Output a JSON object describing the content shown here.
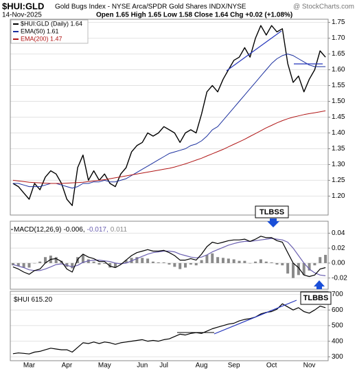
{
  "header": {
    "symbol": "$HUI:GLD",
    "subtitle": "Gold Bugs Index - NYSE Arca/SPDR Gold Shares INDX/NYSE",
    "source": "@ StockCharts.com",
    "date": "14-Nov-2025",
    "quote": "Open 1.65 High 1.65 Low 1.58 Close 1.64 Chg +0.02 (+1.08%)"
  },
  "chart_data": [
    {
      "type": "line",
      "ylim": [
        1.14,
        1.76
      ],
      "yticks": [
        {
          "value": 1.2,
          "label": "1.20"
        },
        1.25,
        {
          "value": 1.3,
          "label": "1.30"
        },
        1.35,
        {
          "value": 1.4,
          "label": "1.40"
        },
        1.45,
        {
          "value": 1.5,
          "label": "1.50"
        },
        1.55,
        {
          "value": 1.6,
          "label": "1.60"
        },
        1.65,
        {
          "value": 1.7,
          "label": "1.70"
        },
        1.75
      ],
      "grid": true,
      "annotations": [
        "TLBSS"
      ],
      "series": [
        {
          "name": "$HUI:GLD (Daily) 1.64",
          "color": "#000000",
          "width": 1.4,
          "values": [
            1.24,
            1.23,
            1.21,
            1.19,
            1.24,
            1.22,
            1.26,
            1.28,
            1.27,
            1.24,
            1.19,
            1.17,
            1.29,
            1.33,
            1.25,
            1.28,
            1.25,
            1.27,
            1.24,
            1.23,
            1.27,
            1.29,
            1.34,
            1.36,
            1.37,
            1.4,
            1.39,
            1.4,
            1.42,
            1.41,
            1.4,
            1.37,
            1.4,
            1.41,
            1.4,
            1.46,
            1.53,
            1.55,
            1.53,
            1.57,
            1.6,
            1.63,
            1.64,
            1.67,
            1.64,
            1.7,
            1.74,
            1.71,
            1.74,
            1.72,
            1.73,
            1.62,
            1.56,
            1.58,
            1.53,
            1.57,
            1.6,
            1.66,
            1.64
          ]
        },
        {
          "name": "EMA(50) 1.61",
          "color": "#1a2f9e",
          "width": 1,
          "values": [
            1.24,
            1.24,
            1.235,
            1.23,
            1.23,
            1.23,
            1.235,
            1.24,
            1.24,
            1.235,
            1.23,
            1.225,
            1.23,
            1.24,
            1.24,
            1.245,
            1.245,
            1.25,
            1.245,
            1.245,
            1.25,
            1.255,
            1.265,
            1.275,
            1.285,
            1.295,
            1.305,
            1.315,
            1.325,
            1.335,
            1.34,
            1.345,
            1.35,
            1.36,
            1.365,
            1.375,
            1.39,
            1.41,
            1.42,
            1.44,
            1.46,
            1.48,
            1.5,
            1.52,
            1.54,
            1.56,
            1.58,
            1.6,
            1.62,
            1.635,
            1.645,
            1.65,
            1.645,
            1.635,
            1.625,
            1.615,
            1.61,
            1.61,
            1.61
          ]
        },
        {
          "name": "EMA(200) 1.47",
          "color": "#b01515",
          "width": 1,
          "values": [
            1.25,
            1.248,
            1.246,
            1.244,
            1.243,
            1.242,
            1.241,
            1.24,
            1.24,
            1.24,
            1.241,
            1.242,
            1.243,
            1.244,
            1.246,
            1.248,
            1.25,
            1.252,
            1.255,
            1.258,
            1.261,
            1.264,
            1.267,
            1.27,
            1.273,
            1.276,
            1.279,
            1.282,
            1.285,
            1.288,
            1.292,
            1.297,
            1.302,
            1.308,
            1.314,
            1.32,
            1.327,
            1.334,
            1.341,
            1.348,
            1.356,
            1.364,
            1.372,
            1.38,
            1.389,
            1.398,
            1.407,
            1.416,
            1.424,
            1.432,
            1.439,
            1.445,
            1.45,
            1.454,
            1.458,
            1.461,
            1.464,
            1.467,
            1.47
          ]
        }
      ]
    },
    {
      "type": "line",
      "legend": "MACD(12,26,9)",
      "legend_values": [
        "-0.006,",
        "-0.017,",
        "0.011"
      ],
      "ylim": [
        -0.035,
        0.056
      ],
      "yticks": [
        -0.02,
        {
          "value": 0,
          "label": "0.00"
        },
        0.02,
        0.04
      ],
      "grid": true,
      "series": [
        {
          "name": "Histogram",
          "style": "bar",
          "color": "#8a8a8a",
          "values": [
            -0.003,
            -0.004,
            -0.006,
            -0.006,
            0,
            0.002,
            0.008,
            0.01,
            0.008,
            0.003,
            -0.005,
            -0.007,
            0.008,
            0.011,
            0.005,
            0.002,
            -0.002,
            -0.001,
            -0.006,
            -0.006,
            -0.001,
            0.004,
            0.007,
            0.008,
            0.007,
            0.006,
            0.002,
            0.001,
            0.001,
            -0.002,
            -0.005,
            -0.008,
            -0.006,
            -0.002,
            -0.003,
            0.004,
            0.011,
            0.013,
            0.008,
            0.007,
            0.006,
            0.005,
            0.003,
            0.003,
            0,
            0.002,
            0.005,
            0.002,
            0.001,
            -0.002,
            -0.003,
            -0.014,
            -0.02,
            -0.016,
            -0.016,
            -0.01,
            -0.003,
            0.008,
            0.011
          ]
        },
        {
          "name": "Signal",
          "style": "line",
          "color": "#6a5fb0",
          "values": [
            -0.002,
            -0.004,
            -0.006,
            -0.009,
            -0.01,
            -0.01,
            -0.008,
            -0.005,
            -0.002,
            -0.001,
            -0.003,
            -0.005,
            -0.003,
            0.001,
            0.003,
            0.004,
            0.004,
            0.003,
            0.002,
            0,
            -0.001,
            0,
            0.003,
            0.006,
            0.009,
            0.012,
            0.014,
            0.015,
            0.016,
            0.016,
            0.015,
            0.012,
            0.01,
            0.008,
            0.007,
            0.008,
            0.011,
            0.015,
            0.018,
            0.021,
            0.024,
            0.026,
            0.028,
            0.029,
            0.029,
            0.03,
            0.031,
            0.032,
            0.033,
            0.032,
            0.031,
            0.028,
            0.02,
            0.01,
            0,
            -0.008,
            -0.013,
            -0.016,
            -0.017
          ]
        },
        {
          "name": "MACD",
          "style": "line",
          "color": "#000000",
          "values": [
            -0.005,
            -0.008,
            -0.012,
            -0.015,
            -0.01,
            -0.008,
            0,
            0.005,
            0.006,
            0.002,
            -0.008,
            -0.012,
            0.005,
            0.012,
            0.008,
            0.006,
            0.002,
            0.002,
            -0.004,
            -0.006,
            -0.002,
            0.004,
            0.01,
            0.014,
            0.016,
            0.018,
            0.016,
            0.016,
            0.017,
            0.014,
            0.01,
            0.004,
            0.004,
            0.006,
            0.004,
            0.012,
            0.022,
            0.028,
            0.026,
            0.028,
            0.03,
            0.031,
            0.031,
            0.032,
            0.029,
            0.032,
            0.036,
            0.034,
            0.034,
            0.03,
            0.028,
            0.014,
            0,
            -0.006,
            -0.016,
            -0.018,
            -0.016,
            -0.008,
            -0.006
          ]
        }
      ]
    },
    {
      "type": "line",
      "legend": "$HUI 615.20",
      "ylim": [
        275,
        720
      ],
      "yticks": [
        300,
        400,
        500,
        600,
        700
      ],
      "grid": true,
      "annotations": [
        "TLBBS"
      ],
      "categories": [
        null,
        null,
        null,
        "Mar",
        null,
        null,
        null,
        null,
        null,
        null,
        "Apr",
        null,
        null,
        null,
        null,
        null,
        null,
        "May",
        null,
        null,
        null,
        null,
        null,
        null,
        "Jun",
        null,
        null,
        null,
        "Jul",
        null,
        null,
        null,
        null,
        null,
        null,
        "Aug",
        null,
        null,
        null,
        null,
        null,
        "Sep",
        null,
        null,
        null,
        null,
        null,
        null,
        "Oct",
        null,
        null,
        null,
        null,
        null,
        null,
        "Nov",
        null,
        null,
        null
      ],
      "series": [
        {
          "name": "$HUI",
          "color": "#000000",
          "values": [
            320,
            325,
            322,
            318,
            330,
            335,
            345,
            355,
            350,
            345,
            345,
            330,
            360,
            390,
            385,
            395,
            385,
            395,
            390,
            380,
            390,
            395,
            400,
            405,
            410,
            400,
            405,
            400,
            410,
            415,
            430,
            445,
            440,
            450,
            455,
            450,
            465,
            480,
            490,
            500,
            510,
            515,
            530,
            540,
            545,
            555,
            575,
            585,
            590,
            605,
            640,
            620,
            600,
            615,
            590,
            580,
            600,
            625,
            615
          ]
        }
      ]
    }
  ]
}
